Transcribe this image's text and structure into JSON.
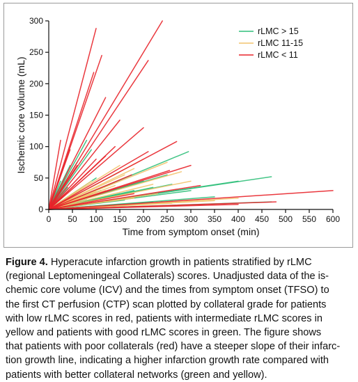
{
  "chart_data": {
    "type": "line",
    "title": "",
    "xlabel": "Time from symptom onset (min)",
    "ylabel": "Ischemic core volume (mL)",
    "xlim": [
      0,
      600
    ],
    "ylim": [
      0,
      300
    ],
    "x_ticks": [
      0,
      50,
      100,
      150,
      200,
      250,
      300,
      350,
      400,
      450,
      500,
      550,
      600
    ],
    "y_ticks": [
      0,
      50,
      100,
      150,
      200,
      250,
      300
    ],
    "grid": false,
    "legend_position": "top-right",
    "legend": [
      {
        "label": "rLMC > 15",
        "color": "#2fbf7a"
      },
      {
        "label": "rLMC 11-15",
        "color": "#f2c46e"
      },
      {
        "label": "rLMC < 11",
        "color": "#e8232a"
      }
    ],
    "series": [
      {
        "name": "rLMC > 15",
        "color": "#2fbf7a",
        "segments": [
          [
            470,
            52
          ],
          [
            470,
            12
          ],
          [
            400,
            45
          ],
          [
            295,
            92
          ],
          [
            260,
            40
          ],
          [
            220,
            35
          ],
          [
            200,
            45
          ],
          [
            180,
            30
          ],
          [
            150,
            25
          ],
          [
            120,
            20
          ],
          [
            100,
            18
          ],
          [
            80,
            110
          ],
          [
            60,
            75
          ],
          [
            45,
            70
          ],
          [
            40,
            35
          ],
          [
            100,
            50
          ],
          [
            150,
            60
          ],
          [
            130,
            40
          ],
          [
            250,
            55
          ],
          [
            300,
            30
          ],
          [
            220,
            12
          ],
          [
            350,
            20
          ],
          [
            80,
            15
          ],
          [
            60,
            10
          ],
          [
            30,
            20
          ],
          [
            25,
            45
          ],
          [
            160,
            15
          ],
          [
            90,
            95
          ],
          [
            110,
            30
          ],
          [
            200,
            22
          ]
        ]
      },
      {
        "name": "rLMC 11-15",
        "color": "#f2c46e",
        "segments": [
          [
            200,
            80
          ],
          [
            250,
            75
          ],
          [
            180,
            65
          ],
          [
            160,
            55
          ],
          [
            300,
            45
          ],
          [
            280,
            60
          ],
          [
            220,
            40
          ],
          [
            140,
            38
          ],
          [
            120,
            30
          ],
          [
            100,
            28
          ],
          [
            80,
            22
          ],
          [
            260,
            10
          ],
          [
            350,
            14
          ],
          [
            400,
            18
          ],
          [
            230,
            25
          ],
          [
            180,
            18
          ],
          [
            90,
            45
          ],
          [
            150,
            70
          ]
        ]
      },
      {
        "name": "rLMC < 11",
        "color": "#e8232a",
        "segments": [
          [
            100,
            288
          ],
          [
            112,
            245
          ],
          [
            95,
            218
          ],
          [
            240,
            300
          ],
          [
            210,
            237
          ],
          [
            120,
            178
          ],
          [
            150,
            142
          ],
          [
            140,
            100
          ],
          [
            120,
            85
          ],
          [
            100,
            80
          ],
          [
            200,
            130
          ],
          [
            270,
            108
          ],
          [
            210,
            92
          ],
          [
            300,
            70
          ],
          [
            255,
            62
          ],
          [
            175,
            55
          ],
          [
            600,
            30
          ],
          [
            480,
            12
          ],
          [
            320,
            38
          ],
          [
            25,
            110
          ],
          [
            45,
            95
          ],
          [
            60,
            70
          ],
          [
            180,
            25
          ],
          [
            400,
            8
          ]
        ]
      }
    ]
  },
  "caption": {
    "label": "Figure 4.",
    "lines": [
      "Hyperacute infarction growth in patients stratified by rLMC",
      "(regional Leptomeningeal Collaterals) scores. Unadjusted data of the is-",
      "chemic core volume (ICV) and the times from symptom onset (TFSO) to",
      "the first CT perfusion (CTP) scan plotted by collateral grade for patients",
      "with low rLMC scores in red, patients with intermediate rLMC scores in",
      "yellow and patients with good rLMC scores in green. The figure shows",
      "that patients with poor collaterals (red) have a steeper slope of their infarc-",
      "tion growth line, indicating a higher infarction growth rate compared with",
      "patients with better collateral networks (green and yellow)."
    ]
  }
}
